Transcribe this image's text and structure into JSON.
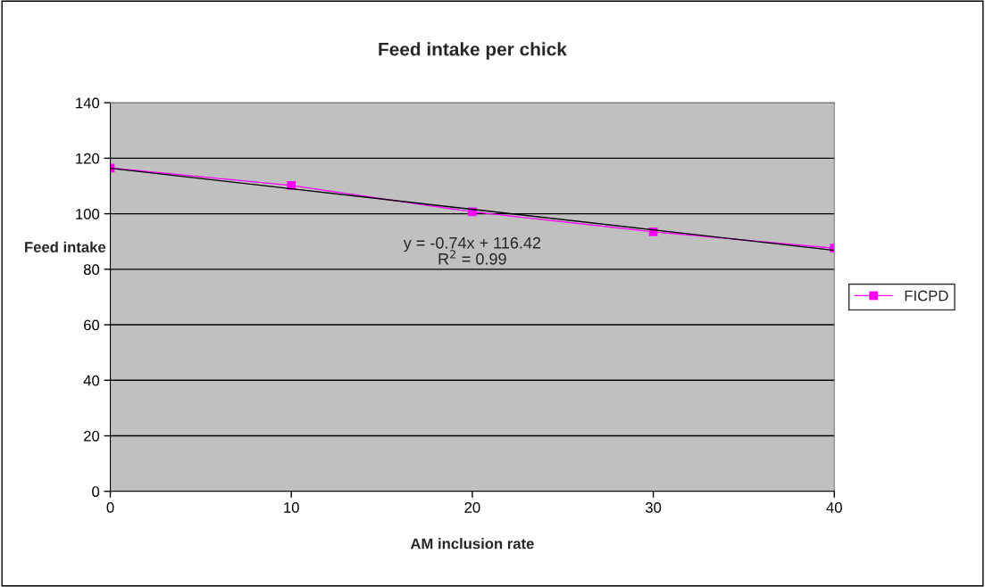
{
  "chart_data": {
    "type": "line",
    "title": "Feed intake per chick",
    "xlabel": "AM inclusion rate",
    "ylabel": "Feed intake",
    "x": [
      0,
      10,
      20,
      30,
      40
    ],
    "series": [
      {
        "name": "FICPD",
        "color": "#ff00ff",
        "values": [
          116.5,
          110.2,
          100.7,
          93.5,
          87.6
        ],
        "marker": "square"
      },
      {
        "type": "line",
        "color": "#000000",
        "x": [
          0,
          40
        ],
        "values": [
          116.4,
          86.8
        ],
        "marker": "none"
      }
    ],
    "annotations": [
      "y = -0.74x + 116.42\nR$^{2}$ = 0.99"
    ],
    "xlim": [
      0,
      40
    ],
    "xticks": [
      0,
      10,
      20,
      30,
      40
    ],
    "ylim": [
      0,
      140
    ],
    "yticks": [
      0,
      20,
      40,
      60,
      80,
      100,
      120,
      140
    ],
    "grid": "y",
    "legend": "right"
  }
}
